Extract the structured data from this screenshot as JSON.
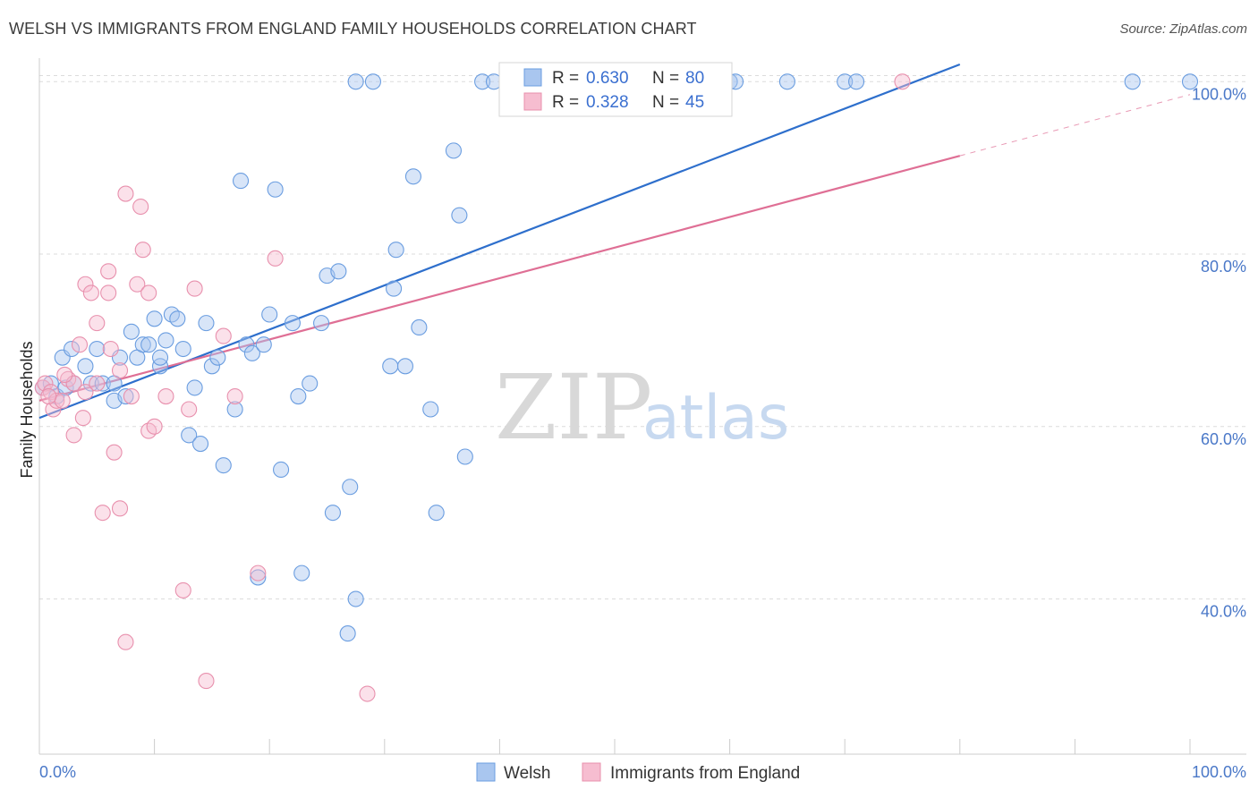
{
  "chart_data": {
    "type": "scatter",
    "title": "WELSH VS IMMIGRANTS FROM ENGLAND FAMILY HOUSEHOLDS CORRELATION CHART",
    "source": "Source: ZipAtlas.com",
    "ylabel": "Family Households",
    "xlim": [
      0,
      100
    ],
    "ylim": [
      22,
      102
    ],
    "x_tick_labels": [
      "0.0%",
      "100.0%"
    ],
    "y_ticks": [
      {
        "value": 40,
        "label": "40.0%"
      },
      {
        "value": 60,
        "label": "60.0%"
      },
      {
        "value": 80,
        "label": "80.0%"
      },
      {
        "value": 100,
        "label": "100.0%"
      }
    ],
    "watermark": {
      "zip": "ZIP",
      "atlas": "atlas"
    },
    "legend_stats": [
      {
        "series": "Welsh",
        "r_label": "R =",
        "r_value": "0.630",
        "n_label": "N =",
        "n_value": "80"
      },
      {
        "series": "Immigrants from England",
        "r_label": "R =",
        "r_value": "0.328",
        "n_label": "N =",
        "n_value": "45"
      }
    ],
    "series": [
      {
        "name": "Welsh",
        "color": "#6a9de0",
        "fill": "#a9c6ef",
        "line_color": "#2e6fcc",
        "trend": {
          "x0": 0,
          "y0": 61,
          "x1": 80,
          "y1": 102
        },
        "points": [
          [
            0.3,
            64.5
          ],
          [
            1,
            65
          ],
          [
            1.5,
            63.5
          ],
          [
            2,
            68
          ],
          [
            2.3,
            64.5
          ],
          [
            2.8,
            69
          ],
          [
            3,
            65
          ],
          [
            4,
            67
          ],
          [
            4.5,
            65
          ],
          [
            5,
            69
          ],
          [
            5.5,
            65
          ],
          [
            6.5,
            65
          ],
          [
            6.5,
            63
          ],
          [
            7,
            68
          ],
          [
            7.5,
            63.5
          ],
          [
            8,
            71
          ],
          [
            8.5,
            68
          ],
          [
            9,
            69.5
          ],
          [
            9.5,
            69.5
          ],
          [
            10,
            72.5
          ],
          [
            10.5,
            67
          ],
          [
            10.5,
            68
          ],
          [
            11,
            70
          ],
          [
            11.5,
            73
          ],
          [
            12,
            72.5
          ],
          [
            12.5,
            69
          ],
          [
            13,
            59
          ],
          [
            13.5,
            64.5
          ],
          [
            14,
            58
          ],
          [
            14.5,
            72
          ],
          [
            15,
            67
          ],
          [
            15.5,
            68
          ],
          [
            16,
            55.5
          ],
          [
            17,
            62
          ],
          [
            17.5,
            88.5
          ],
          [
            18,
            69.5
          ],
          [
            18.5,
            68.5
          ],
          [
            19,
            42.5
          ],
          [
            19.5,
            69.5
          ],
          [
            20,
            73
          ],
          [
            20.5,
            87.5
          ],
          [
            21,
            55
          ],
          [
            22,
            72
          ],
          [
            22.5,
            63.5
          ],
          [
            22.8,
            43
          ],
          [
            23.5,
            65
          ],
          [
            24.5,
            72
          ],
          [
            25,
            77.5
          ],
          [
            25.5,
            50
          ],
          [
            26,
            78
          ],
          [
            26.8,
            36
          ],
          [
            27,
            53
          ],
          [
            27.5,
            40
          ],
          [
            27.5,
            100
          ],
          [
            29,
            100
          ],
          [
            30.5,
            67
          ],
          [
            30.8,
            76
          ],
          [
            31,
            80.5
          ],
          [
            31.8,
            67
          ],
          [
            32.5,
            89
          ],
          [
            33,
            71.5
          ],
          [
            34,
            62
          ],
          [
            34.5,
            50
          ],
          [
            36,
            92
          ],
          [
            36.5,
            84.5
          ],
          [
            37,
            56.5
          ],
          [
            38.5,
            100
          ],
          [
            39.5,
            100
          ],
          [
            43,
            100
          ],
          [
            43.5,
            100
          ],
          [
            47.5,
            100
          ],
          [
            51,
            100
          ],
          [
            55,
            100
          ],
          [
            60,
            100
          ],
          [
            60.5,
            100
          ],
          [
            65,
            100
          ],
          [
            70,
            100
          ],
          [
            71,
            100
          ],
          [
            95,
            100
          ],
          [
            100,
            100
          ]
        ]
      },
      {
        "name": "Immigrants from England",
        "color": "#e890ad",
        "fill": "#f6bdd0",
        "line_color": "#df6f95",
        "trend": {
          "x0": 0,
          "y0": 63,
          "x1": 100,
          "y1": 98.5
        },
        "trend_solid_until": 80,
        "points": [
          [
            0.3,
            64.5
          ],
          [
            0.5,
            65
          ],
          [
            1,
            64
          ],
          [
            1.2,
            62
          ],
          [
            1.5,
            63
          ],
          [
            2,
            63
          ],
          [
            2.5,
            65.5
          ],
          [
            3,
            65
          ],
          [
            3,
            59
          ],
          [
            3.5,
            69.5
          ],
          [
            3.8,
            61
          ],
          [
            4,
            64
          ],
          [
            4,
            76.5
          ],
          [
            4.5,
            75.5
          ],
          [
            5,
            72
          ],
          [
            5,
            65
          ],
          [
            5.5,
            50
          ],
          [
            6,
            78
          ],
          [
            6,
            75.5
          ],
          [
            6.2,
            69
          ],
          [
            6.5,
            57
          ],
          [
            7,
            50.5
          ],
          [
            7,
            66.5
          ],
          [
            7.5,
            87
          ],
          [
            7.5,
            35
          ],
          [
            8,
            63.5
          ],
          [
            8.5,
            76.5
          ],
          [
            8.8,
            85.5
          ],
          [
            9,
            80.5
          ],
          [
            9.5,
            59.5
          ],
          [
            9.5,
            75.5
          ],
          [
            10,
            60
          ],
          [
            11,
            63.5
          ],
          [
            12.5,
            41
          ],
          [
            13,
            62
          ],
          [
            13.5,
            76
          ],
          [
            14.5,
            30.5
          ],
          [
            16,
            70.5
          ],
          [
            17,
            63.5
          ],
          [
            19,
            43
          ],
          [
            20.5,
            79.5
          ],
          [
            28.5,
            29
          ],
          [
            75,
            100
          ],
          [
            0.8,
            63.5
          ],
          [
            2.2,
            66
          ]
        ]
      }
    ]
  }
}
